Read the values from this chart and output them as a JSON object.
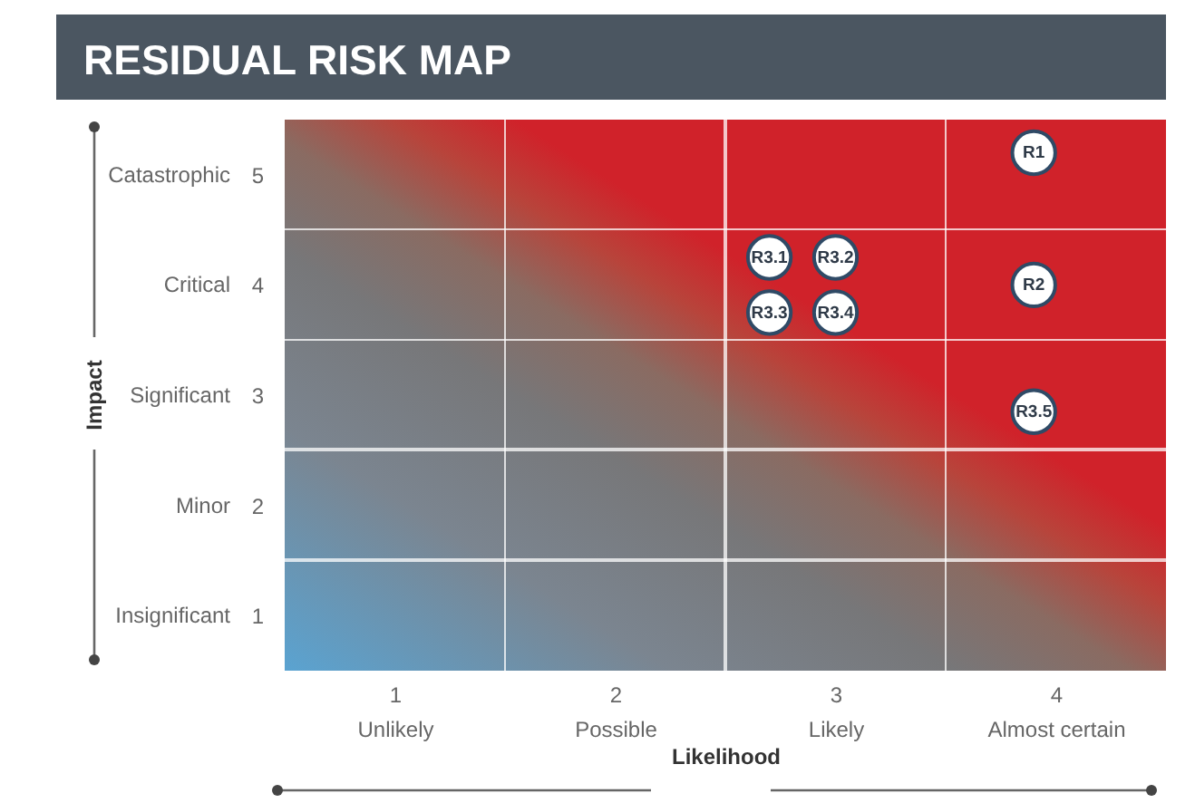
{
  "chart_data": {
    "type": "scatter",
    "title": "RESIDUAL RISK MAP",
    "xlabel": "Likelihood",
    "xlim": [
      0.5,
      4.5
    ],
    "ylim": [
      0.5,
      5.5
    ],
    "xticks": [
      {
        "value": 1,
        "label": "1\nUnlikely"
      },
      {
        "value": 2,
        "label": "2\nPossible"
      },
      {
        "value": 3,
        "label": "3\nLikely"
      },
      {
        "value": 4,
        "label": "4\nAlmost certain"
      }
    ],
    "yticks": [
      1,
      2,
      3,
      4,
      5
    ],
    "annotations": [
      "Insignificant",
      "Minor",
      "Significant",
      "Critical",
      "Catastrophic",
      "Impact"
    ],
    "marker": "circle",
    "grid": false,
    "legend": false,
    "series": [
      {
        "name": "R1",
        "color": "#ffffff",
        "x": [
          3.9
        ],
        "values": [
          5.2
        ]
      },
      {
        "name": "R2",
        "color": "#ffffff",
        "x": [
          3.9
        ],
        "values": [
          4
        ]
      },
      {
        "name": "R3.5",
        "color": "#ffffff",
        "x": [
          3.9
        ],
        "values": [
          2.85
        ]
      },
      {
        "name": "R3.1",
        "color": "#ffffff",
        "x": [
          2.7
        ],
        "values": [
          4.25
        ]
      },
      {
        "name": "R3.2",
        "color": "#ffffff",
        "x": [
          3
        ],
        "values": [
          4.25
        ]
      },
      {
        "name": "R3.3",
        "color": "#ffffff",
        "x": [
          2.7
        ],
        "values": [
          3.75
        ]
      },
      {
        "name": "R3.4",
        "color": "#ffffff",
        "x": [
          3
        ],
        "values": [
          3.75
        ]
      }
    ]
  }
}
